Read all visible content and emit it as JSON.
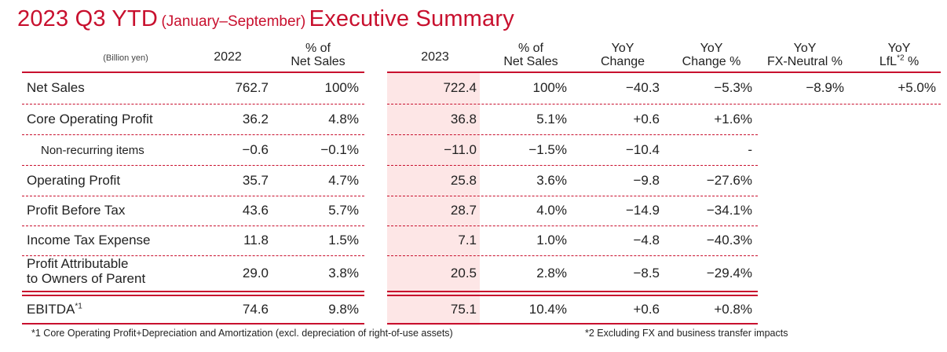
{
  "title": {
    "main": "2023 Q3 YTD",
    "paren": "(January–September)",
    "tail": "Executive Summary"
  },
  "colors": {
    "accent": "#c8102e",
    "highlight": "#fde6e6"
  },
  "headers": {
    "unit": "(Billion yen)",
    "y2022": "2022",
    "pct_ns_1_a": "% of",
    "pct_ns_1_b": "Net Sales",
    "y2023": "2023",
    "pct_ns_2_a": "% of",
    "pct_ns_2_b": "Net Sales",
    "yoy_a": "YoY",
    "yoy_b": "Change",
    "yoyp_a": "YoY",
    "yoyp_b": "Change %",
    "fx_a": "YoY",
    "fx_b": "FX-Neutral %",
    "lfl_a": "YoY",
    "lfl_b1": "LfL",
    "lfl_sup": "*2",
    "lfl_b2": " %"
  },
  "rows": [
    {
      "label": "Net Sales",
      "v2022": "762.7",
      "p2022": "100%",
      "v2023": "722.4",
      "p2023": "100%",
      "yoy": "−40.3",
      "yoyp": "−5.3%",
      "fx": "−8.9%",
      "lfl": "+5.0%"
    },
    {
      "label": "Core Operating Profit",
      "v2022": "36.2",
      "p2022": "4.8%",
      "v2023": "36.8",
      "p2023": "5.1%",
      "yoy": "+0.6",
      "yoyp": "+1.6%"
    },
    {
      "label": "Non-recurring items",
      "v2022": "−0.6",
      "p2022": "−0.1%",
      "v2023": "−11.0",
      "p2023": "−1.5%",
      "yoy": "−10.4",
      "yoyp": "-"
    },
    {
      "label": "Operating Profit",
      "v2022": "35.7",
      "p2022": "4.7%",
      "v2023": "25.8",
      "p2023": "3.6%",
      "yoy": "−9.8",
      "yoyp": "−27.6%"
    },
    {
      "label": "Profit Before Tax",
      "v2022": "43.6",
      "p2022": "5.7%",
      "v2023": "28.7",
      "p2023": "4.0%",
      "yoy": "−14.9",
      "yoyp": "−34.1%"
    },
    {
      "label": "Income Tax Expense",
      "v2022": "11.8",
      "p2022": "1.5%",
      "v2023": "7.1",
      "p2023": "1.0%",
      "yoy": "−4.8",
      "yoyp": "−40.3%"
    },
    {
      "label_a": "Profit Attributable",
      "label_b": "to Owners of Parent",
      "v2022": "29.0",
      "p2022": "3.8%",
      "v2023": "20.5",
      "p2023": "2.8%",
      "yoy": "−8.5",
      "yoyp": "−29.4%"
    },
    {
      "label": "EBITDA",
      "label_sup": "*1",
      "v2022": "74.6",
      "p2022": "9.8%",
      "v2023": "75.1",
      "p2023": "10.4%",
      "yoy": "+0.6",
      "yoyp": "+0.8%"
    }
  ],
  "footnotes": {
    "f1": "*1 Core Operating Profit+Depreciation and Amortization (excl. depreciation of right-of-use assets)",
    "f2": "*2 Excluding FX and business transfer impacts"
  }
}
